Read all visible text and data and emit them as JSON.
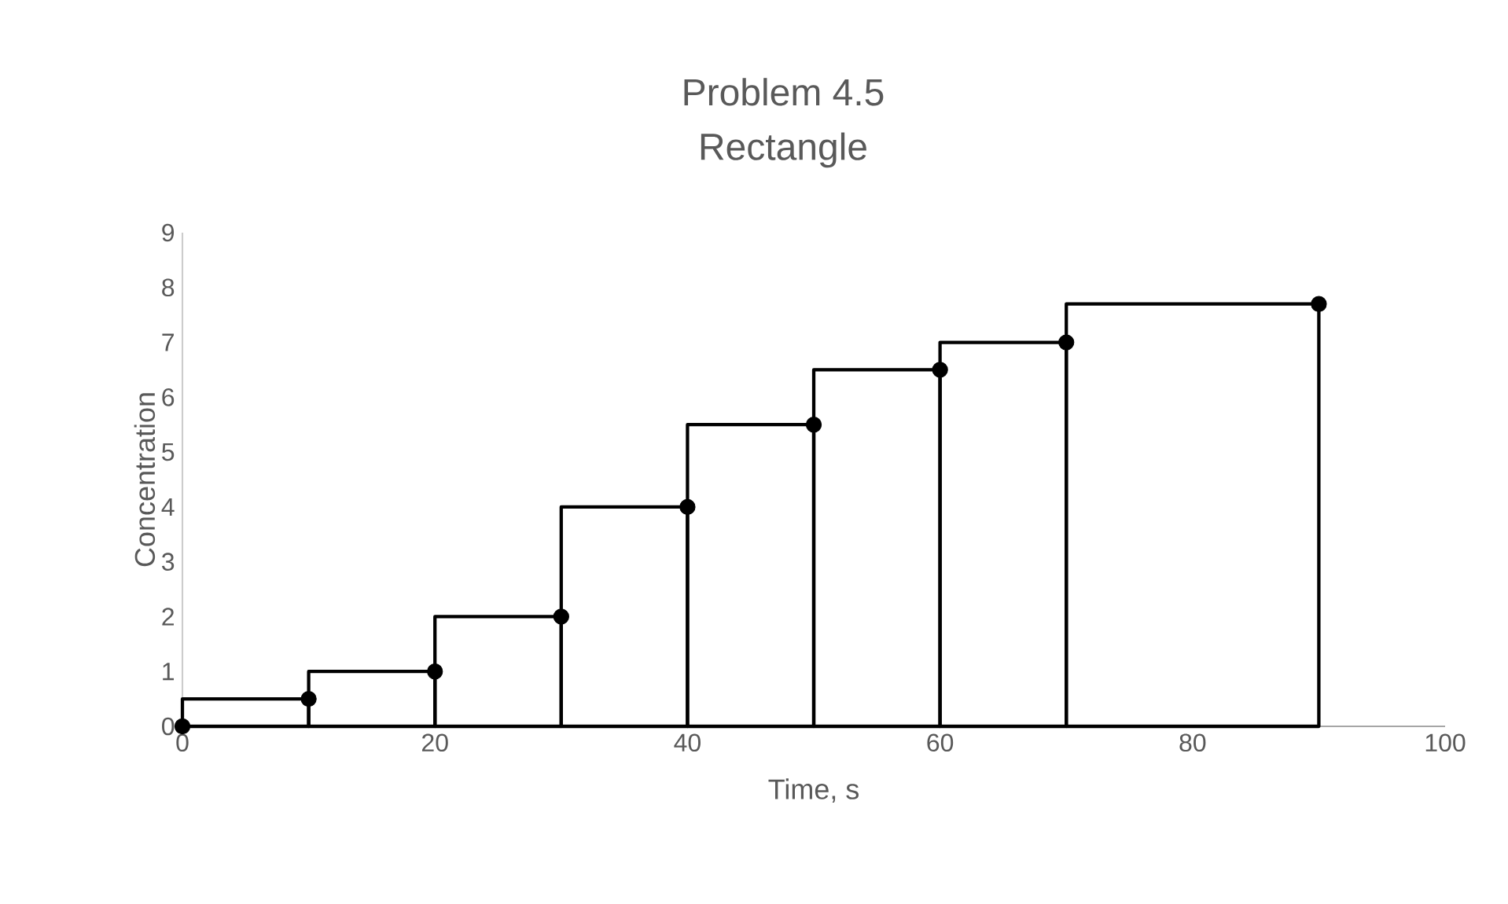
{
  "chart_data": {
    "type": "histogram",
    "title": "Problem 4.5",
    "subtitle": "Rectangle",
    "xlabel": "Time, s",
    "ylabel": "Concentration",
    "xlim": [
      0,
      100
    ],
    "xticks": [
      0,
      20,
      40,
      60,
      80,
      100
    ],
    "ylim": [
      0,
      9
    ],
    "yticks": [
      0,
      1,
      2,
      3,
      4,
      5,
      6,
      7,
      8,
      9
    ],
    "grid": false,
    "legend": false,
    "bins": [
      0,
      10,
      20,
      30,
      40,
      50,
      60,
      70,
      90
    ],
    "values": [
      0.5,
      1,
      2,
      4,
      5.5,
      6.5,
      7,
      7.7
    ],
    "color": "#000000",
    "series": [
      {
        "type": "scatter",
        "color": "#000000",
        "marker": "circle",
        "x": [
          0,
          10,
          20,
          30,
          40,
          50,
          60,
          70,
          90
        ],
        "values": [
          0,
          0.5,
          1,
          2,
          4,
          5.5,
          6.5,
          7,
          7.7
        ]
      }
    ]
  }
}
